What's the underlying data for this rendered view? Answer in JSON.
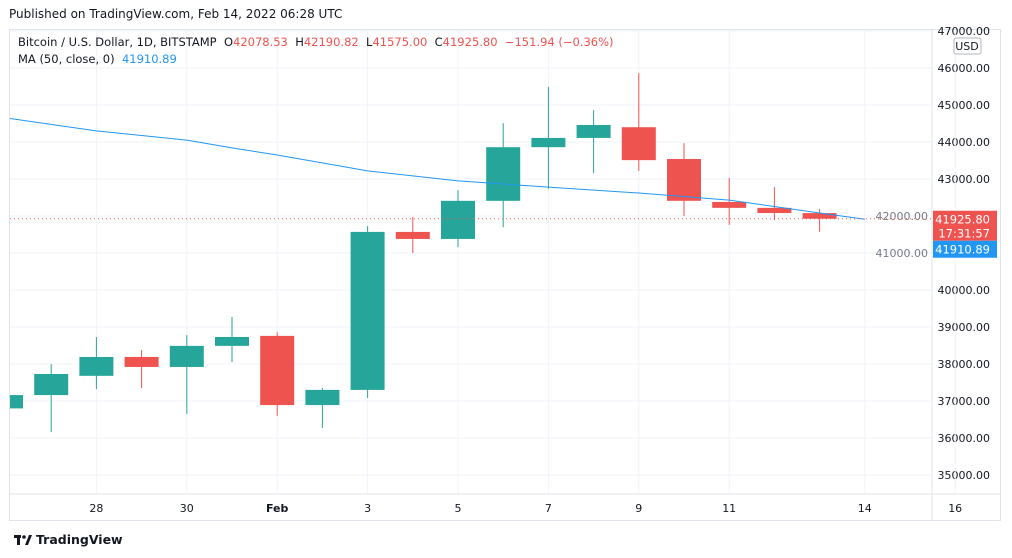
{
  "header": {
    "published": "Published on TradingView.com, Feb 14, 2022 06:28 UTC"
  },
  "legend": {
    "symbol": "Bitcoin / U.S. Dollar, 1D, BITSTAMP",
    "o_label": "O",
    "o": "42078.53",
    "h_label": "H",
    "h": "42190.82",
    "l_label": "L",
    "l": "41575.00",
    "c_label": "C",
    "c": "41925.80",
    "change": "−151.94 (−0.36%)",
    "ma_label": "MA (50, close, 0)",
    "ma_value": "41910.89"
  },
  "footer": {
    "brand": "TradingView"
  },
  "colors": {
    "up": "#26a69a",
    "down": "#ef5350",
    "ma": "#2196f3",
    "grid": "#f0f3fa"
  },
  "chart_data": {
    "type": "candlestick",
    "currency": "USD",
    "ylim": [
      34500,
      47000
    ],
    "y_ticks": [
      47000,
      46000,
      45000,
      44000,
      43000,
      42000,
      41000,
      40000,
      39000,
      38000,
      37000,
      36000,
      35000
    ],
    "y_tick_labels": [
      "47000.00",
      "46000.00",
      "45000.00",
      "44000.00",
      "43000.00",
      "42000.00",
      "41000.00",
      "40000.00",
      "39000.00",
      "38000.00",
      "37000.00",
      "36000.00",
      "35000.00"
    ],
    "x_ticks": [
      {
        "day": 2,
        "label": "28"
      },
      {
        "day": 4,
        "label": "30"
      },
      {
        "day": 6,
        "label": "Feb"
      },
      {
        "day": 8,
        "label": "3"
      },
      {
        "day": 10,
        "label": "5"
      },
      {
        "day": 12,
        "label": "7"
      },
      {
        "day": 14,
        "label": "9"
      },
      {
        "day": 16,
        "label": "11"
      },
      {
        "day": 19,
        "label": "14"
      },
      {
        "day": 21,
        "label": "16"
      }
    ],
    "candles": [
      {
        "date": "Jan 27",
        "o": 36800,
        "h": 37250,
        "l": 36700,
        "c": 37160
      },
      {
        "date": "Jan 28",
        "o": 37160,
        "h": 38000,
        "l": 36160,
        "c": 37730
      },
      {
        "date": "Jan 29",
        "o": 37680,
        "h": 38730,
        "l": 37320,
        "c": 38190
      },
      {
        "date": "Jan 30",
        "o": 38190,
        "h": 38380,
        "l": 37350,
        "c": 37920
      },
      {
        "date": "Jan 31",
        "o": 37920,
        "h": 38780,
        "l": 36650,
        "c": 38490
      },
      {
        "date": "Feb 1",
        "o": 38490,
        "h": 39270,
        "l": 38050,
        "c": 38730
      },
      {
        "date": "Feb 2",
        "o": 38760,
        "h": 38860,
        "l": 36600,
        "c": 36890
      },
      {
        "date": "Feb 3",
        "o": 36890,
        "h": 37350,
        "l": 36270,
        "c": 37300
      },
      {
        "date": "Feb 4",
        "o": 37300,
        "h": 41730,
        "l": 37080,
        "c": 41570
      },
      {
        "date": "Feb 5",
        "o": 41570,
        "h": 41970,
        "l": 41000,
        "c": 41380
      },
      {
        "date": "Feb 6",
        "o": 41380,
        "h": 42700,
        "l": 41160,
        "c": 42410
      },
      {
        "date": "Feb 7",
        "o": 42410,
        "h": 44510,
        "l": 41700,
        "c": 43860
      },
      {
        "date": "Feb 8",
        "o": 43860,
        "h": 45490,
        "l": 42730,
        "c": 44110
      },
      {
        "date": "Feb 9",
        "o": 44110,
        "h": 44860,
        "l": 43160,
        "c": 44460
      },
      {
        "date": "Feb 10",
        "o": 44400,
        "h": 45860,
        "l": 43220,
        "c": 43510
      },
      {
        "date": "Feb 11",
        "o": 43540,
        "h": 43970,
        "l": 42000,
        "c": 42410
      },
      {
        "date": "Feb 12",
        "o": 42380,
        "h": 43030,
        "l": 41760,
        "c": 42220
      },
      {
        "date": "Feb 13",
        "o": 42220,
        "h": 42780,
        "l": 41890,
        "c": 42080
      },
      {
        "date": "Feb 14",
        "o": 42078.53,
        "h": 42190.82,
        "l": 41575.0,
        "c": 41925.8
      }
    ],
    "ma50": [
      {
        "day": 0,
        "v": 44650
      },
      {
        "day": 2,
        "v": 44300
      },
      {
        "day": 4,
        "v": 44050
      },
      {
        "day": 5,
        "v": 43840
      },
      {
        "day": 6,
        "v": 43650
      },
      {
        "day": 8,
        "v": 43220
      },
      {
        "day": 10,
        "v": 42950
      },
      {
        "day": 12,
        "v": 42780
      },
      {
        "day": 14,
        "v": 42620
      },
      {
        "day": 16,
        "v": 42430
      },
      {
        "day": 18,
        "v": 42080
      },
      {
        "day": 19,
        "v": 41910.89
      }
    ],
    "last_price_label": "41925.80",
    "countdown": "17:31:57",
    "ma_price_label": "41910.89"
  }
}
